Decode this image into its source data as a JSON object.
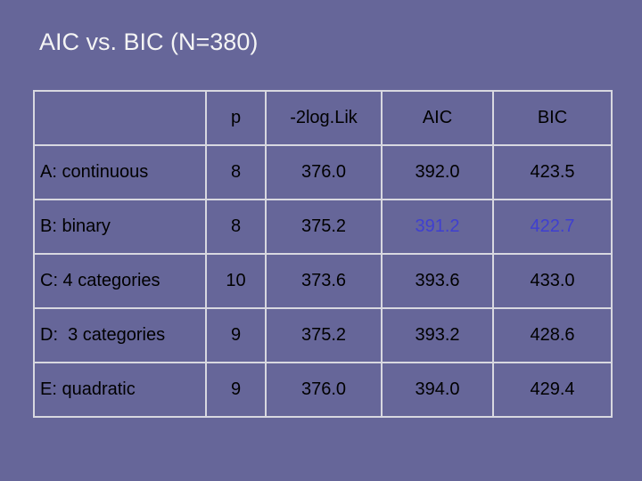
{
  "header": {
    "title": "AIC vs. BIC (N=380)"
  },
  "table": {
    "columns": [
      "p",
      "-2log.Lik",
      "AIC",
      "BIC"
    ],
    "rows": [
      [
        "A: continuous",
        "8",
        "376.0",
        "392.0",
        "423.5"
      ],
      [
        "B: binary",
        "8",
        "375.2",
        "391.2",
        "422.7"
      ],
      [
        "C: 4 categories",
        "10",
        "373.6",
        "393.6",
        "433.0"
      ],
      [
        "D:  3 categories",
        "9",
        "375.2",
        "393.2",
        "428.6"
      ],
      [
        "E: quadratic",
        "9",
        "376.0",
        "394.0",
        "429.4"
      ]
    ]
  }
}
